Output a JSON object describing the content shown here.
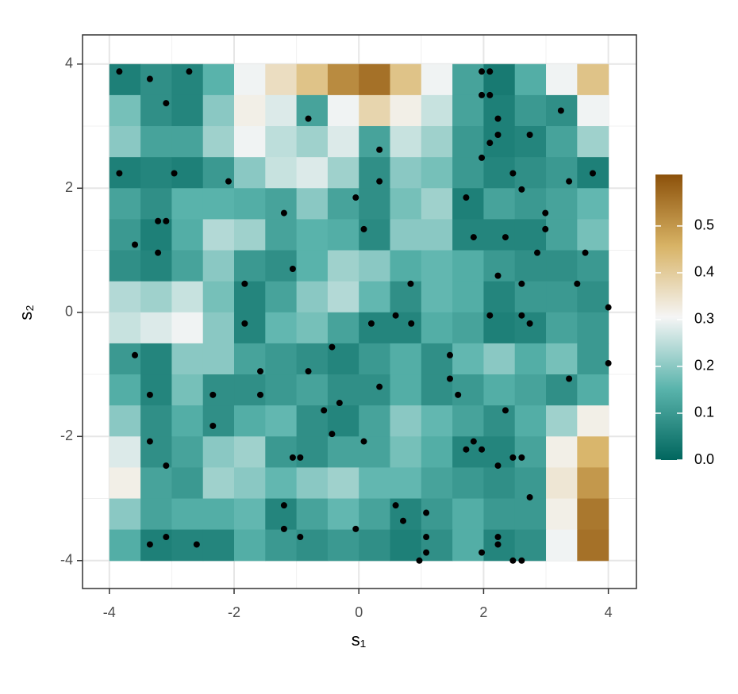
{
  "chart_data": {
    "type": "heatmap",
    "x_label": "s₁",
    "y_label": "s₂",
    "xlim": [
      -4.43,
      4.45
    ],
    "ylim": [
      -4.45,
      4.47
    ],
    "xticks": [
      -4,
      -2,
      0,
      2,
      4
    ],
    "yticks": [
      -4,
      -2,
      0,
      2,
      4
    ],
    "xminor": [
      -3,
      -1,
      1,
      3
    ],
    "yminor": [
      -3,
      -1,
      1,
      3
    ],
    "grid": true,
    "x": [
      -3.75,
      -3.25,
      -2.75,
      -2.25,
      -1.75,
      -1.25,
      -0.75,
      -0.25,
      0.25,
      0.75,
      1.25,
      1.75,
      2.25,
      2.75,
      3.25,
      3.75
    ],
    "y": [
      3.75,
      3.25,
      2.75,
      2.25,
      1.75,
      1.25,
      0.75,
      0.25,
      -0.25,
      -0.75,
      -1.25,
      -1.75,
      -2.25,
      -2.75,
      -3.25,
      -3.75
    ],
    "z": [
      [
        0.05,
        0.08,
        0.06,
        0.15,
        0.3,
        0.36,
        0.42,
        0.52,
        0.56,
        0.42,
        0.3,
        0.12,
        0.04,
        0.14,
        0.3,
        0.42
      ],
      [
        0.18,
        0.08,
        0.06,
        0.2,
        0.32,
        0.28,
        0.12,
        0.3,
        0.38,
        0.32,
        0.26,
        0.12,
        0.05,
        0.1,
        0.08,
        0.3
      ],
      [
        0.2,
        0.12,
        0.12,
        0.22,
        0.3,
        0.25,
        0.22,
        0.28,
        0.12,
        0.26,
        0.22,
        0.1,
        0.05,
        0.06,
        0.12,
        0.22
      ],
      [
        0.05,
        0.06,
        0.05,
        0.1,
        0.2,
        0.26,
        0.28,
        0.22,
        0.08,
        0.2,
        0.18,
        0.1,
        0.06,
        0.08,
        0.1,
        0.05
      ],
      [
        0.12,
        0.08,
        0.15,
        0.15,
        0.14,
        0.12,
        0.2,
        0.12,
        0.08,
        0.18,
        0.22,
        0.05,
        0.12,
        0.1,
        0.12,
        0.16
      ],
      [
        0.1,
        0.05,
        0.14,
        0.24,
        0.22,
        0.12,
        0.15,
        0.14,
        0.07,
        0.2,
        0.2,
        0.06,
        0.06,
        0.06,
        0.12,
        0.18
      ],
      [
        0.08,
        0.06,
        0.12,
        0.2,
        0.1,
        0.08,
        0.15,
        0.22,
        0.2,
        0.14,
        0.16,
        0.14,
        0.1,
        0.08,
        0.08,
        0.1
      ],
      [
        0.24,
        0.22,
        0.26,
        0.18,
        0.06,
        0.12,
        0.2,
        0.24,
        0.16,
        0.08,
        0.16,
        0.14,
        0.06,
        0.1,
        0.1,
        0.08
      ],
      [
        0.26,
        0.28,
        0.3,
        0.2,
        0.06,
        0.16,
        0.18,
        0.12,
        0.06,
        0.06,
        0.14,
        0.12,
        0.05,
        0.06,
        0.12,
        0.1
      ],
      [
        0.1,
        0.06,
        0.2,
        0.2,
        0.12,
        0.1,
        0.08,
        0.06,
        0.1,
        0.14,
        0.08,
        0.16,
        0.2,
        0.14,
        0.18,
        0.1
      ],
      [
        0.14,
        0.06,
        0.18,
        0.08,
        0.08,
        0.1,
        0.12,
        0.08,
        0.08,
        0.14,
        0.08,
        0.1,
        0.14,
        0.12,
        0.08,
        0.14
      ],
      [
        0.2,
        0.08,
        0.14,
        0.08,
        0.14,
        0.16,
        0.08,
        0.06,
        0.12,
        0.2,
        0.16,
        0.12,
        0.08,
        0.14,
        0.22,
        0.32
      ],
      [
        0.28,
        0.08,
        0.12,
        0.2,
        0.22,
        0.1,
        0.08,
        0.12,
        0.12,
        0.18,
        0.14,
        0.06,
        0.06,
        0.12,
        0.32,
        0.45
      ],
      [
        0.32,
        0.12,
        0.1,
        0.22,
        0.2,
        0.16,
        0.2,
        0.22,
        0.16,
        0.16,
        0.12,
        0.1,
        0.08,
        0.1,
        0.34,
        0.5
      ],
      [
        0.2,
        0.12,
        0.14,
        0.14,
        0.16,
        0.06,
        0.12,
        0.16,
        0.12,
        0.06,
        0.1,
        0.14,
        0.1,
        0.1,
        0.32,
        0.55
      ],
      [
        0.14,
        0.05,
        0.06,
        0.06,
        0.14,
        0.1,
        0.08,
        0.1,
        0.08,
        0.05,
        0.08,
        0.14,
        0.06,
        0.08,
        0.3,
        0.56
      ]
    ],
    "zlim": [
      0,
      0.61
    ],
    "colors": [
      "#01665e",
      "#5ab4ac",
      "#f5f5f5",
      "#d8b365",
      "#8c510a"
    ],
    "zticks": [
      {
        "value": 0,
        "label": "0.0"
      },
      0.1,
      0.2,
      0.3,
      0.4,
      0.5
    ],
    "points": {
      "color": "#000000",
      "x": [
        -3.84,
        -3.35,
        -2.72,
        -3.09,
        -0.81,
        -3.84,
        -2.96,
        -2.09,
        -3.22,
        -3.09,
        -3.59,
        -3.22,
        -1.2,
        -1.06,
        -1.83,
        -1.83,
        -3.59,
        -3.35,
        -2.34,
        -2.34,
        -3.35,
        -3.09,
        -3.35,
        -3.09,
        -2.6,
        -1.58,
        -1.58,
        -0.81,
        -0.43,
        -0.31,
        -0.56,
        -0.43,
        -1.06,
        -0.94,
        -1.2,
        -1.2,
        -0.94,
        -0.05,
        0.08,
        0.33,
        0.2,
        0.59,
        0.84,
        0.83,
        -0.05,
        0.08,
        0.33,
        0.33,
        1.97,
        2.1,
        1.97,
        2.1,
        2.23,
        2.23,
        2.1,
        1.97,
        2.74,
        3.24,
        2.47,
        2.61,
        3.37,
        3.75,
        1.72,
        1.84,
        2.35,
        2.99,
        2.99,
        2.86,
        3.63,
        2.23,
        2.61,
        3.5,
        4.0,
        2.1,
        2.61,
        2.74,
        1.46,
        1.46,
        1.59,
        4.0,
        3.37,
        2.35,
        1.84,
        1.72,
        1.97,
        2.23,
        2.47,
        2.61,
        2.74,
        0.59,
        0.71,
        1.08,
        1.08,
        1.08,
        0.97,
        1.97,
        2.23,
        2.23,
        2.47,
        2.61
      ],
      "y": [
        3.88,
        3.76,
        3.88,
        3.37,
        3.12,
        2.24,
        2.24,
        2.11,
        1.47,
        1.47,
        1.09,
        0.96,
        1.6,
        0.7,
        0.46,
        -0.18,
        -0.69,
        -1.33,
        -1.33,
        -1.83,
        -2.08,
        -2.47,
        -3.74,
        -3.62,
        -3.74,
        -0.95,
        -1.33,
        -0.95,
        -0.56,
        -1.46,
        -1.58,
        -1.96,
        -2.34,
        -2.34,
        -3.11,
        -3.49,
        -3.62,
        -3.49,
        -2.08,
        -1.2,
        -0.18,
        -0.05,
        -0.18,
        0.46,
        1.85,
        1.34,
        2.62,
        2.11,
        3.88,
        3.88,
        3.5,
        3.5,
        3.12,
        2.86,
        2.73,
        2.49,
        2.86,
        3.25,
        2.24,
        1.98,
        2.11,
        2.24,
        1.85,
        1.21,
        1.21,
        1.6,
        1.34,
        0.96,
        0.96,
        0.59,
        0.46,
        0.46,
        0.08,
        -0.05,
        -0.05,
        -0.18,
        -0.69,
        -1.07,
        -1.33,
        -0.82,
        -1.07,
        -1.58,
        -2.08,
        -2.21,
        -2.21,
        -2.47,
        -2.34,
        -2.34,
        -2.98,
        -3.11,
        -3.36,
        -3.23,
        -3.62,
        -3.87,
        -4.0,
        -3.87,
        -3.62,
        -3.74,
        -4.0,
        -4.0
      ]
    }
  }
}
